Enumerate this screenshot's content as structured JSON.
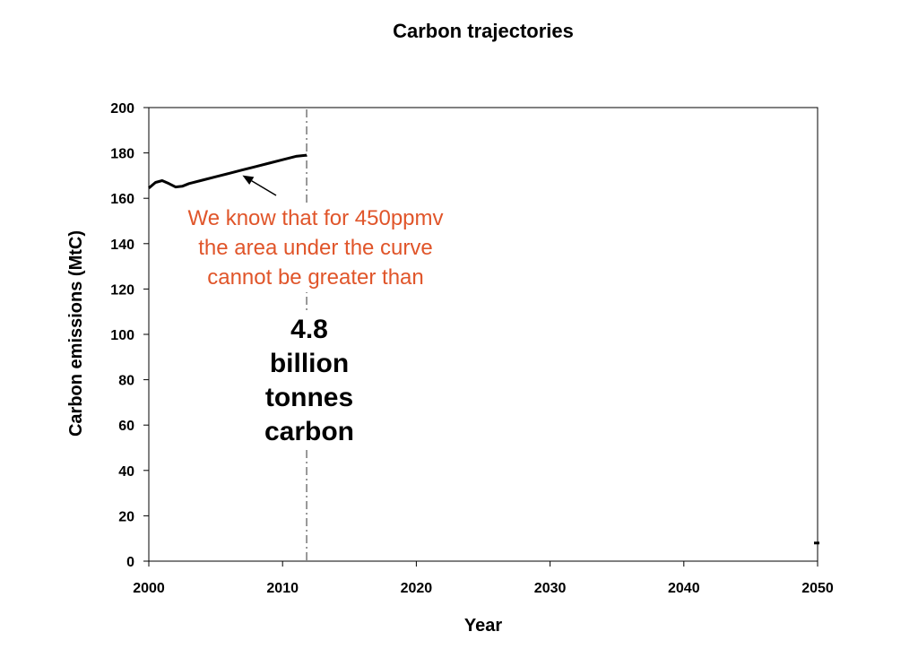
{
  "colors": {
    "line": "#000000",
    "annotation": "#e0552a",
    "divider": "#777777"
  },
  "chart_data": {
    "type": "line",
    "title": "Carbon trajectories",
    "xlabel": "Year",
    "ylabel": "Carbon emissions (MtC)",
    "xlim": [
      2000,
      2050
    ],
    "ylim": [
      0,
      200
    ],
    "xticks": [
      2000,
      2010,
      2020,
      2030,
      2040,
      2050
    ],
    "yticks": [
      0,
      20,
      40,
      60,
      80,
      100,
      120,
      140,
      160,
      180,
      200
    ],
    "grid": false,
    "series": [
      {
        "x": [
          2000,
          2000.5,
          2001,
          2001.5,
          2002,
          2002.5,
          2003,
          2004,
          2005,
          2006,
          2007,
          2008,
          2009,
          2010,
          2011,
          2011.8
        ],
        "values": [
          164.5,
          167,
          167.8,
          166.5,
          165,
          165.3,
          166.5,
          168,
          169.5,
          171,
          172.5,
          174,
          175.5,
          177,
          178.5,
          179
        ]
      }
    ],
    "vertical_line_x": 2011.8,
    "end_marker": {
      "x": 2050,
      "y": 8
    },
    "annotations": {
      "red_text": [
        "We know that for 450ppmv",
        "the area under the curve",
        "cannot be greater than"
      ],
      "black_text": [
        "4.8",
        "billion",
        "tonnes",
        "carbon"
      ],
      "arrow_target": {
        "x": 2007,
        "y": 172.5
      }
    }
  }
}
